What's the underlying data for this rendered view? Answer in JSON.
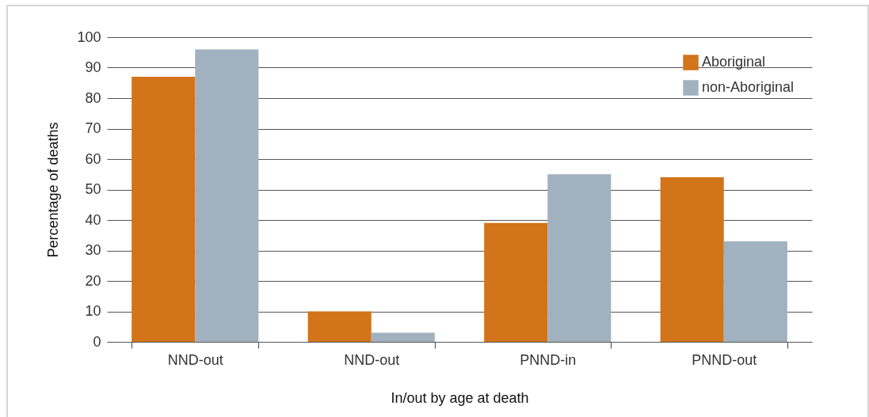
{
  "chart_data": {
    "type": "bar",
    "xlabel": "In/out by age at death",
    "ylabel": "Percentage of deaths",
    "categories": [
      "NND-out",
      "NND-out",
      "PNND-in",
      "PNND-out"
    ],
    "series": [
      {
        "name": "Aboriginal",
        "color": "#d2741a",
        "values": [
          87,
          10,
          39,
          54
        ]
      },
      {
        "name": "non-Aboriginal",
        "color": "#a1b1bf",
        "values": [
          96,
          3,
          55,
          33
        ]
      }
    ],
    "ylim": [
      0,
      100
    ],
    "yticks": [
      0,
      10,
      20,
      30,
      40,
      50,
      60,
      70,
      80,
      90,
      100
    ],
    "grid": "y",
    "legend": "top right"
  }
}
